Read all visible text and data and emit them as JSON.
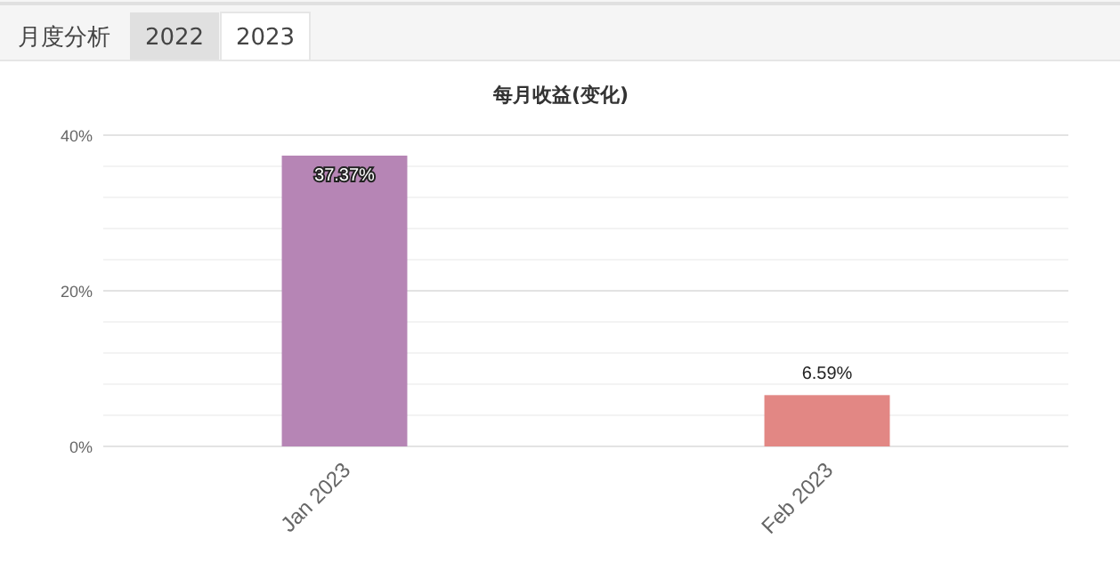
{
  "chart_data": {
    "type": "bar",
    "title": "每月收益(变化)",
    "annotations": [
      "月度分析",
      "2022",
      "2023"
    ],
    "categories": [
      "Jan 2023",
      "Feb 2023"
    ],
    "values": [
      37.37,
      6.59
    ],
    "colors": [
      "#b685b5",
      "#e28784"
    ],
    "value_labels": [
      "37.37%",
      "6.59%"
    ],
    "ylim": [
      0,
      40
    ],
    "yticks": [
      {
        "value": 0,
        "label": "0%"
      },
      {
        "value": 20,
        "label": "20%"
      },
      {
        "value": 40,
        "label": "40%"
      }
    ],
    "grid": "y"
  }
}
